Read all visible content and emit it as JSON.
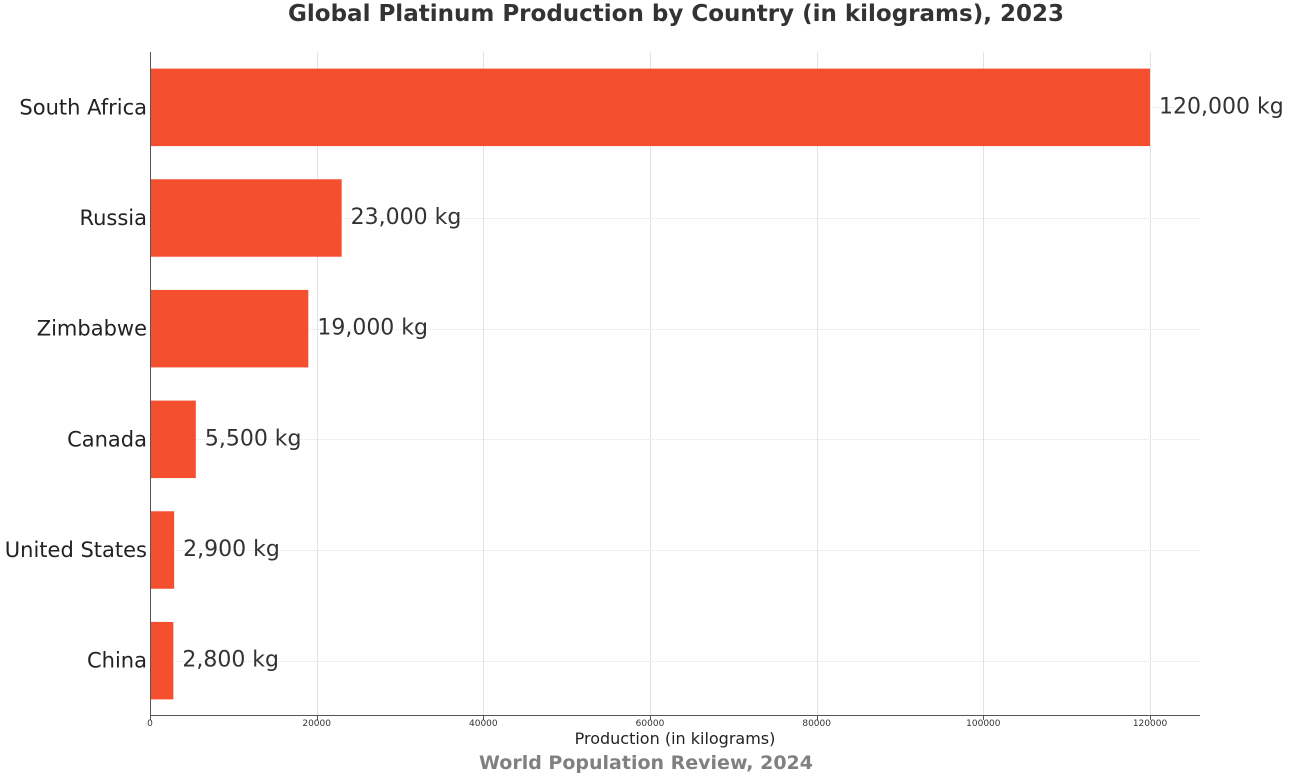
{
  "chart_data": {
    "type": "bar",
    "orientation": "horizontal",
    "title": "Global Platinum Production by Country (in kilograms), 2023",
    "xlabel": "Production (in kilograms)",
    "ylabel": "",
    "categories": [
      "South Africa",
      "Russia",
      "Zimbabwe",
      "Canada",
      "United States",
      "China"
    ],
    "values": [
      120000,
      23000,
      19000,
      5500,
      2900,
      2800
    ],
    "value_labels": [
      "120,000 kg",
      "23,000 kg",
      "19,000 kg",
      "5,500 kg",
      "2,900 kg",
      "2,800 kg"
    ],
    "xlim": [
      0,
      126000
    ],
    "xticks": [
      0,
      20000,
      40000,
      60000,
      80000,
      100000,
      120000
    ],
    "xtick_labels": [
      "0",
      "20000",
      "40000",
      "60000",
      "80000",
      "100000",
      "120000"
    ],
    "grid": true,
    "bar_color": "#f44f2e"
  },
  "source_note": "World Population Review, 2024"
}
